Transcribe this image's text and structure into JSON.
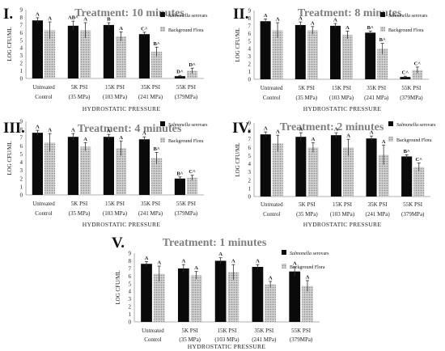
{
  "figure": {
    "colors": {
      "salmonella": "#0a0a0a",
      "background": "#c4c4c4",
      "title": "#7f7f7f"
    }
  },
  "chart_data": [
    {
      "type": "bar",
      "panel_label": "I.",
      "title": "Treatment: 10 minutes",
      "xlabel": "HYDROSTATIC PRESSURE",
      "ylabel": "LOG CFU/ML",
      "ylim": [
        0,
        9
      ],
      "yticks": [
        0,
        1,
        2,
        3,
        4,
        5,
        6,
        7,
        8,
        9
      ],
      "categories": [
        [
          "Untreated",
          "Control"
        ],
        [
          "5K PSI",
          "(35 MPa)"
        ],
        [
          "15K PSI",
          "(103 MPa)"
        ],
        [
          "35K PSI",
          "(241 MPa)"
        ],
        [
          "55K PSI",
          "(379MPa)"
        ]
      ],
      "legend": {
        "placement": "top-right",
        "entries": [
          {
            "italic": "Salmonella",
            "rest": " serovars"
          },
          {
            "italic": "",
            "rest": "Background Flora"
          }
        ]
      },
      "series": [
        {
          "name": "Salmonella serovars",
          "values": [
            7.6,
            6.9,
            7.0,
            5.8,
            0.3
          ],
          "errors": [
            0.35,
            0.6,
            0.3,
            0.25,
            0.1
          ],
          "labels": [
            "A",
            "AB^",
            "B",
            "C^",
            "D^"
          ]
        },
        {
          "name": "Background Flora",
          "values": [
            6.3,
            6.3,
            5.5,
            3.5,
            1.0
          ],
          "errors": [
            1.1,
            1.0,
            0.6,
            0.6,
            0.35
          ],
          "labels": [
            "A",
            "A",
            "A",
            "B^",
            "D^"
          ]
        }
      ]
    },
    {
      "type": "bar",
      "panel_label": "II.",
      "title": "Treatment: 8 minutes",
      "xlabel": "HYDROSTATIC PRESSURE",
      "ylabel": "LOG CFU/ML",
      "ylim": [
        0,
        9
      ],
      "yticks": [
        0,
        1,
        2,
        3,
        4,
        5,
        6,
        7,
        8,
        9
      ],
      "categories": [
        [
          "Untreated",
          "Control"
        ],
        [
          "5K PSI",
          "(35 MPa)"
        ],
        [
          "15K PSI",
          "(103 MPa)"
        ],
        [
          "35K PSI",
          "(241 MPa)"
        ],
        [
          "55K PSI",
          "(379MPa)"
        ]
      ],
      "legend": {
        "placement": "top-right",
        "entries": [
          {
            "italic": "Salmonella",
            "rest": " serovars"
          },
          {
            "italic": "",
            "rest": "Background Flora"
          }
        ]
      },
      "series": [
        {
          "name": "Salmonella serovars",
          "values": [
            7.6,
            7.1,
            7.0,
            6.1,
            0.3
          ],
          "errors": [
            0.3,
            0.4,
            0.3,
            0.2,
            0.1
          ],
          "labels": [
            "A",
            "A",
            "A",
            "B^",
            "C^"
          ]
        },
        {
          "name": "Background Flora",
          "values": [
            6.4,
            6.4,
            5.8,
            4.0,
            1.2
          ],
          "errors": [
            1.0,
            0.5,
            0.5,
            0.7,
            0.4
          ],
          "labels": [
            "A",
            "A",
            "A",
            "B^",
            "C^"
          ]
        }
      ]
    },
    {
      "type": "bar",
      "panel_label": "III.",
      "title": "Treatment: 4 minutes",
      "xlabel": "HYDROSTATIC PRESSURE",
      "ylabel": "LOG CFU/ML",
      "ylim": [
        0,
        9
      ],
      "yticks": [
        0,
        1,
        2,
        3,
        4,
        5,
        6,
        7,
        8,
        9
      ],
      "categories": [
        [
          "Untreated",
          "Control"
        ],
        [
          "5K PSI",
          "(35 MPa)"
        ],
        [
          "15K PSI",
          "(103 MPa)"
        ],
        [
          "35K PSI",
          "(241 MPa)"
        ],
        [
          "55K PSI",
          "(379MPa)"
        ]
      ],
      "legend": {
        "placement": "top-right",
        "entries": [
          {
            "italic": "Salmonella",
            "rest": " serovars"
          },
          {
            "italic": "",
            "rest": "Background Flora"
          }
        ]
      },
      "series": [
        {
          "name": "Salmonella serovars",
          "values": [
            7.6,
            7.1,
            7.1,
            6.8,
            2.0
          ],
          "errors": [
            0.3,
            0.4,
            0.3,
            0.3,
            0.2
          ],
          "labels": [
            "A",
            "A",
            "A",
            "A",
            "B^"
          ]
        },
        {
          "name": "Background Flora",
          "values": [
            6.4,
            5.9,
            5.7,
            4.5,
            2.1
          ],
          "errors": [
            1.1,
            0.5,
            0.9,
            0.7,
            0.3
          ],
          "labels": [
            "A",
            "A",
            "A",
            "B^",
            "C^"
          ]
        }
      ]
    },
    {
      "type": "bar",
      "panel_label": "IV.",
      "title": "Treatment: 2 minutes",
      "xlabel": "HYDROSTATIC PRESSURE",
      "ylabel": "LOG CFU/ML",
      "ylim": [
        0,
        9
      ],
      "yticks": [
        0,
        1,
        2,
        3,
        4,
        5,
        6,
        7,
        8,
        9
      ],
      "categories": [
        [
          "Untreated",
          "Control"
        ],
        [
          "5K PSI",
          "(35 MPa)"
        ],
        [
          "15K PSI",
          "(103 MPa)"
        ],
        [
          "35K PSI",
          "(241 MPa)"
        ],
        [
          "55K PSI",
          "(379MPa)"
        ]
      ],
      "legend": {
        "placement": "top-right",
        "entries": [
          {
            "italic": "Salmonella",
            "rest": " serovars"
          },
          {
            "italic": "",
            "rest": "Background Flora"
          }
        ]
      },
      "series": [
        {
          "name": "Salmonella serovars",
          "values": [
            7.6,
            7.3,
            7.5,
            7.1,
            4.9
          ],
          "errors": [
            0.3,
            0.5,
            0.3,
            0.3,
            0.2
          ],
          "labels": [
            "A",
            "A",
            "A",
            "A",
            "B^"
          ]
        },
        {
          "name": "Background Flora",
          "values": [
            6.5,
            6.0,
            6.0,
            5.1,
            3.6
          ],
          "errors": [
            1.0,
            0.6,
            1.0,
            1.2,
            0.5
          ],
          "labels": [
            "A",
            "A",
            "A",
            "A",
            "C^"
          ]
        }
      ]
    },
    {
      "type": "bar",
      "panel_label": "V.",
      "title": "Treatment: 1 minutes",
      "xlabel": "HYDROSTATIC PRESSURE",
      "ylabel": "LOG CFU/ML",
      "ylim": [
        0,
        9
      ],
      "yticks": [
        0,
        1,
        2,
        3,
        4,
        5,
        6,
        7,
        8,
        9
      ],
      "categories": [
        [
          "Untreated",
          "Control"
        ],
        [
          "5K PSI",
          "(35 MPa)"
        ],
        [
          "15K PSI",
          "(103 MPa)"
        ],
        [
          "35K PSI",
          "(241 MPa)"
        ],
        [
          "55K PSI",
          "(379MPa)"
        ]
      ],
      "legend": {
        "placement": "top-right",
        "entries": [
          {
            "italic": "Salmonella",
            "rest": " serovars"
          },
          {
            "italic": "",
            "rest": "Background Flora"
          }
        ]
      },
      "series": [
        {
          "name": "Salmonella serovars",
          "values": [
            7.6,
            7.0,
            8.0,
            7.2,
            6.6
          ],
          "errors": [
            0.3,
            0.5,
            0.4,
            0.3,
            0.6
          ],
          "labels": [
            "A",
            "A",
            "A",
            "A",
            "A"
          ]
        },
        {
          "name": "Background Flora",
          "values": [
            6.3,
            6.1,
            6.5,
            4.9,
            4.7
          ],
          "errors": [
            1.0,
            0.5,
            1.0,
            0.4,
            0.7
          ],
          "labels": [
            "A",
            "A",
            "A",
            "A",
            "A"
          ]
        }
      ]
    }
  ]
}
